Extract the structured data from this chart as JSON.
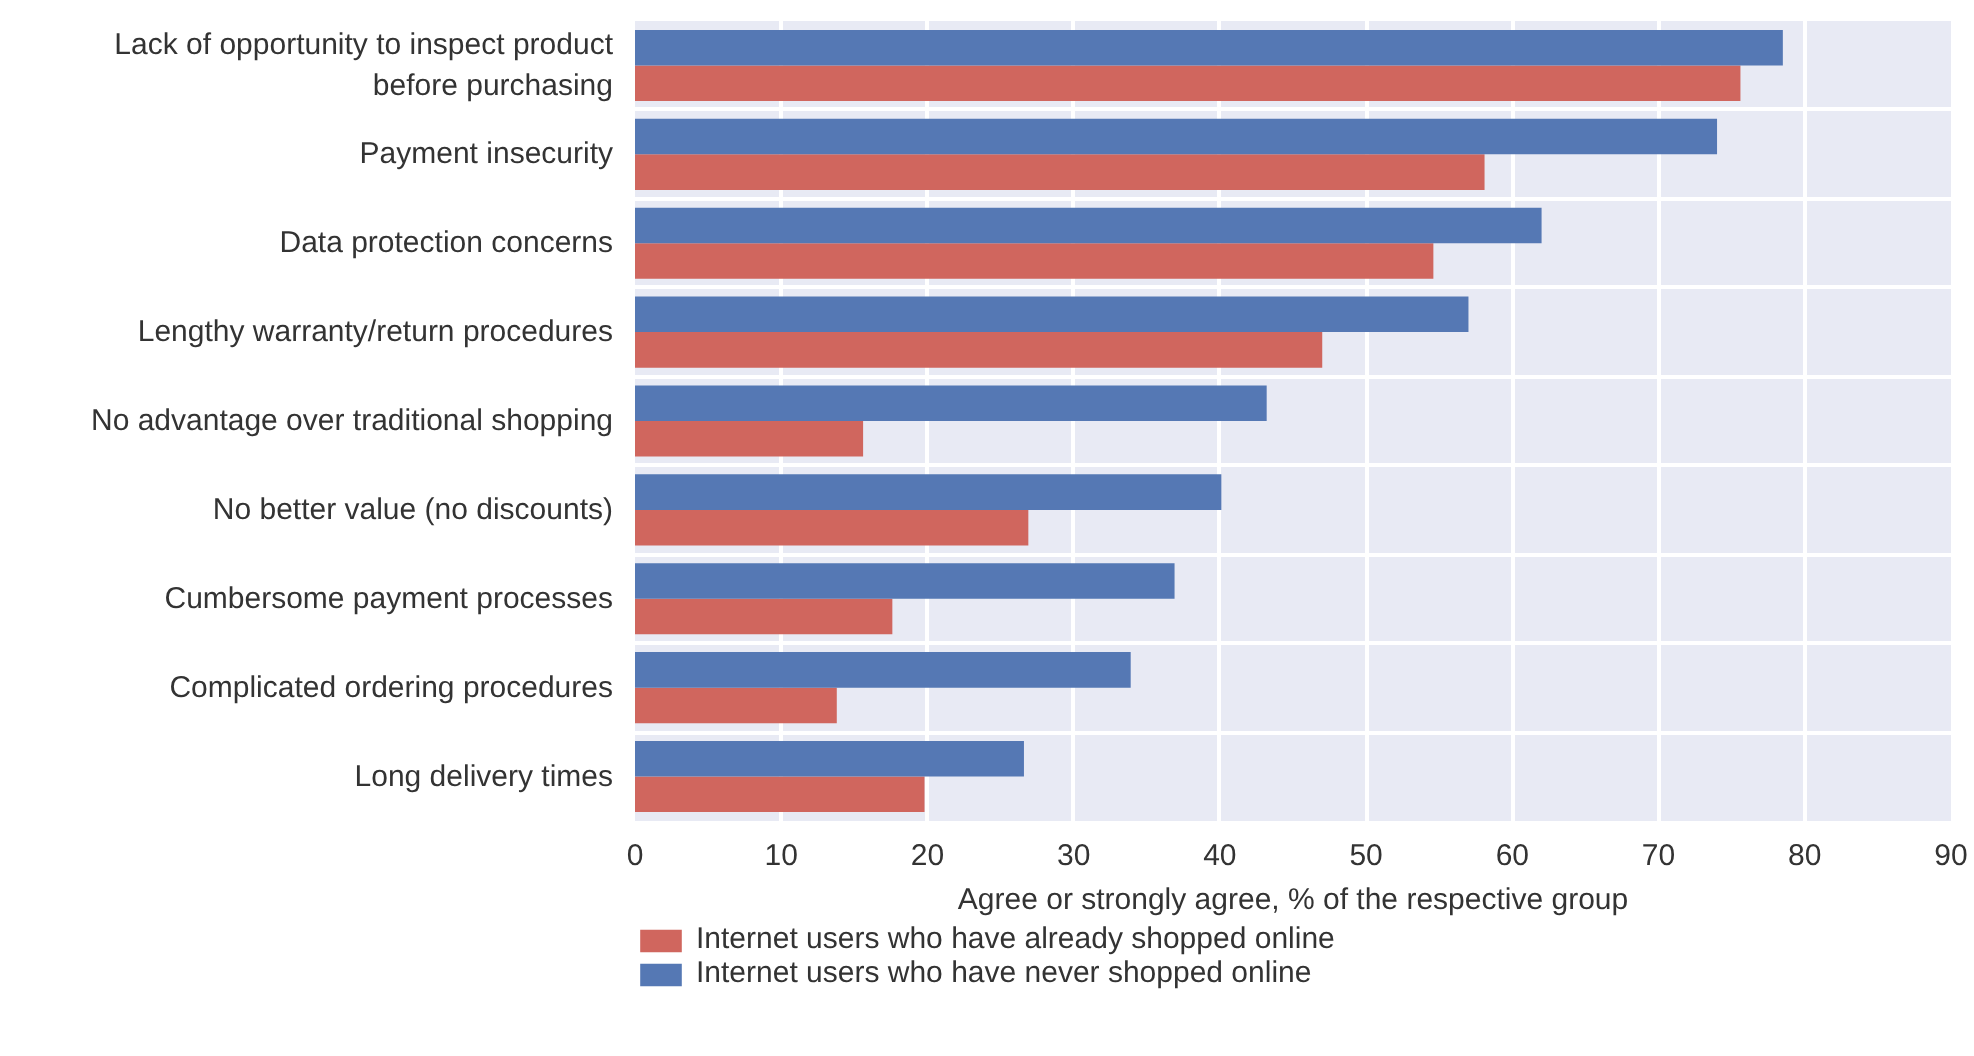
{
  "chart_data": {
    "type": "bar",
    "orientation": "horizontal",
    "xlabel": "Agree or strongly agree, % of the respective group",
    "categories": [
      "Lack of opportunity to inspect product\nbefore purchasing",
      "Payment insecurity",
      "Data protection concerns",
      "Lengthy warranty/return procedures",
      "No advantage over traditional shopping",
      "No better value (no discounts)",
      "Cumbersome payment processes",
      "Complicated ordering procedures",
      "Long delivery times"
    ],
    "series": [
      {
        "name": "Internet users who have already shopped online",
        "color": "#d0665e",
        "values": [
          75.6,
          58.1,
          54.6,
          47.0,
          15.6,
          26.9,
          17.6,
          13.8,
          19.8
        ]
      },
      {
        "name": "Internet users who have never shopped online",
        "color": "#5578b4",
        "values": [
          78.5,
          74.0,
          62.0,
          57.0,
          43.2,
          40.1,
          36.9,
          33.9,
          26.6
        ]
      }
    ],
    "xlim": [
      0,
      90
    ],
    "xticks": [
      0,
      10,
      20,
      30,
      40,
      50,
      60,
      70,
      80,
      90
    ],
    "grid": true,
    "legend": "bottom"
  }
}
